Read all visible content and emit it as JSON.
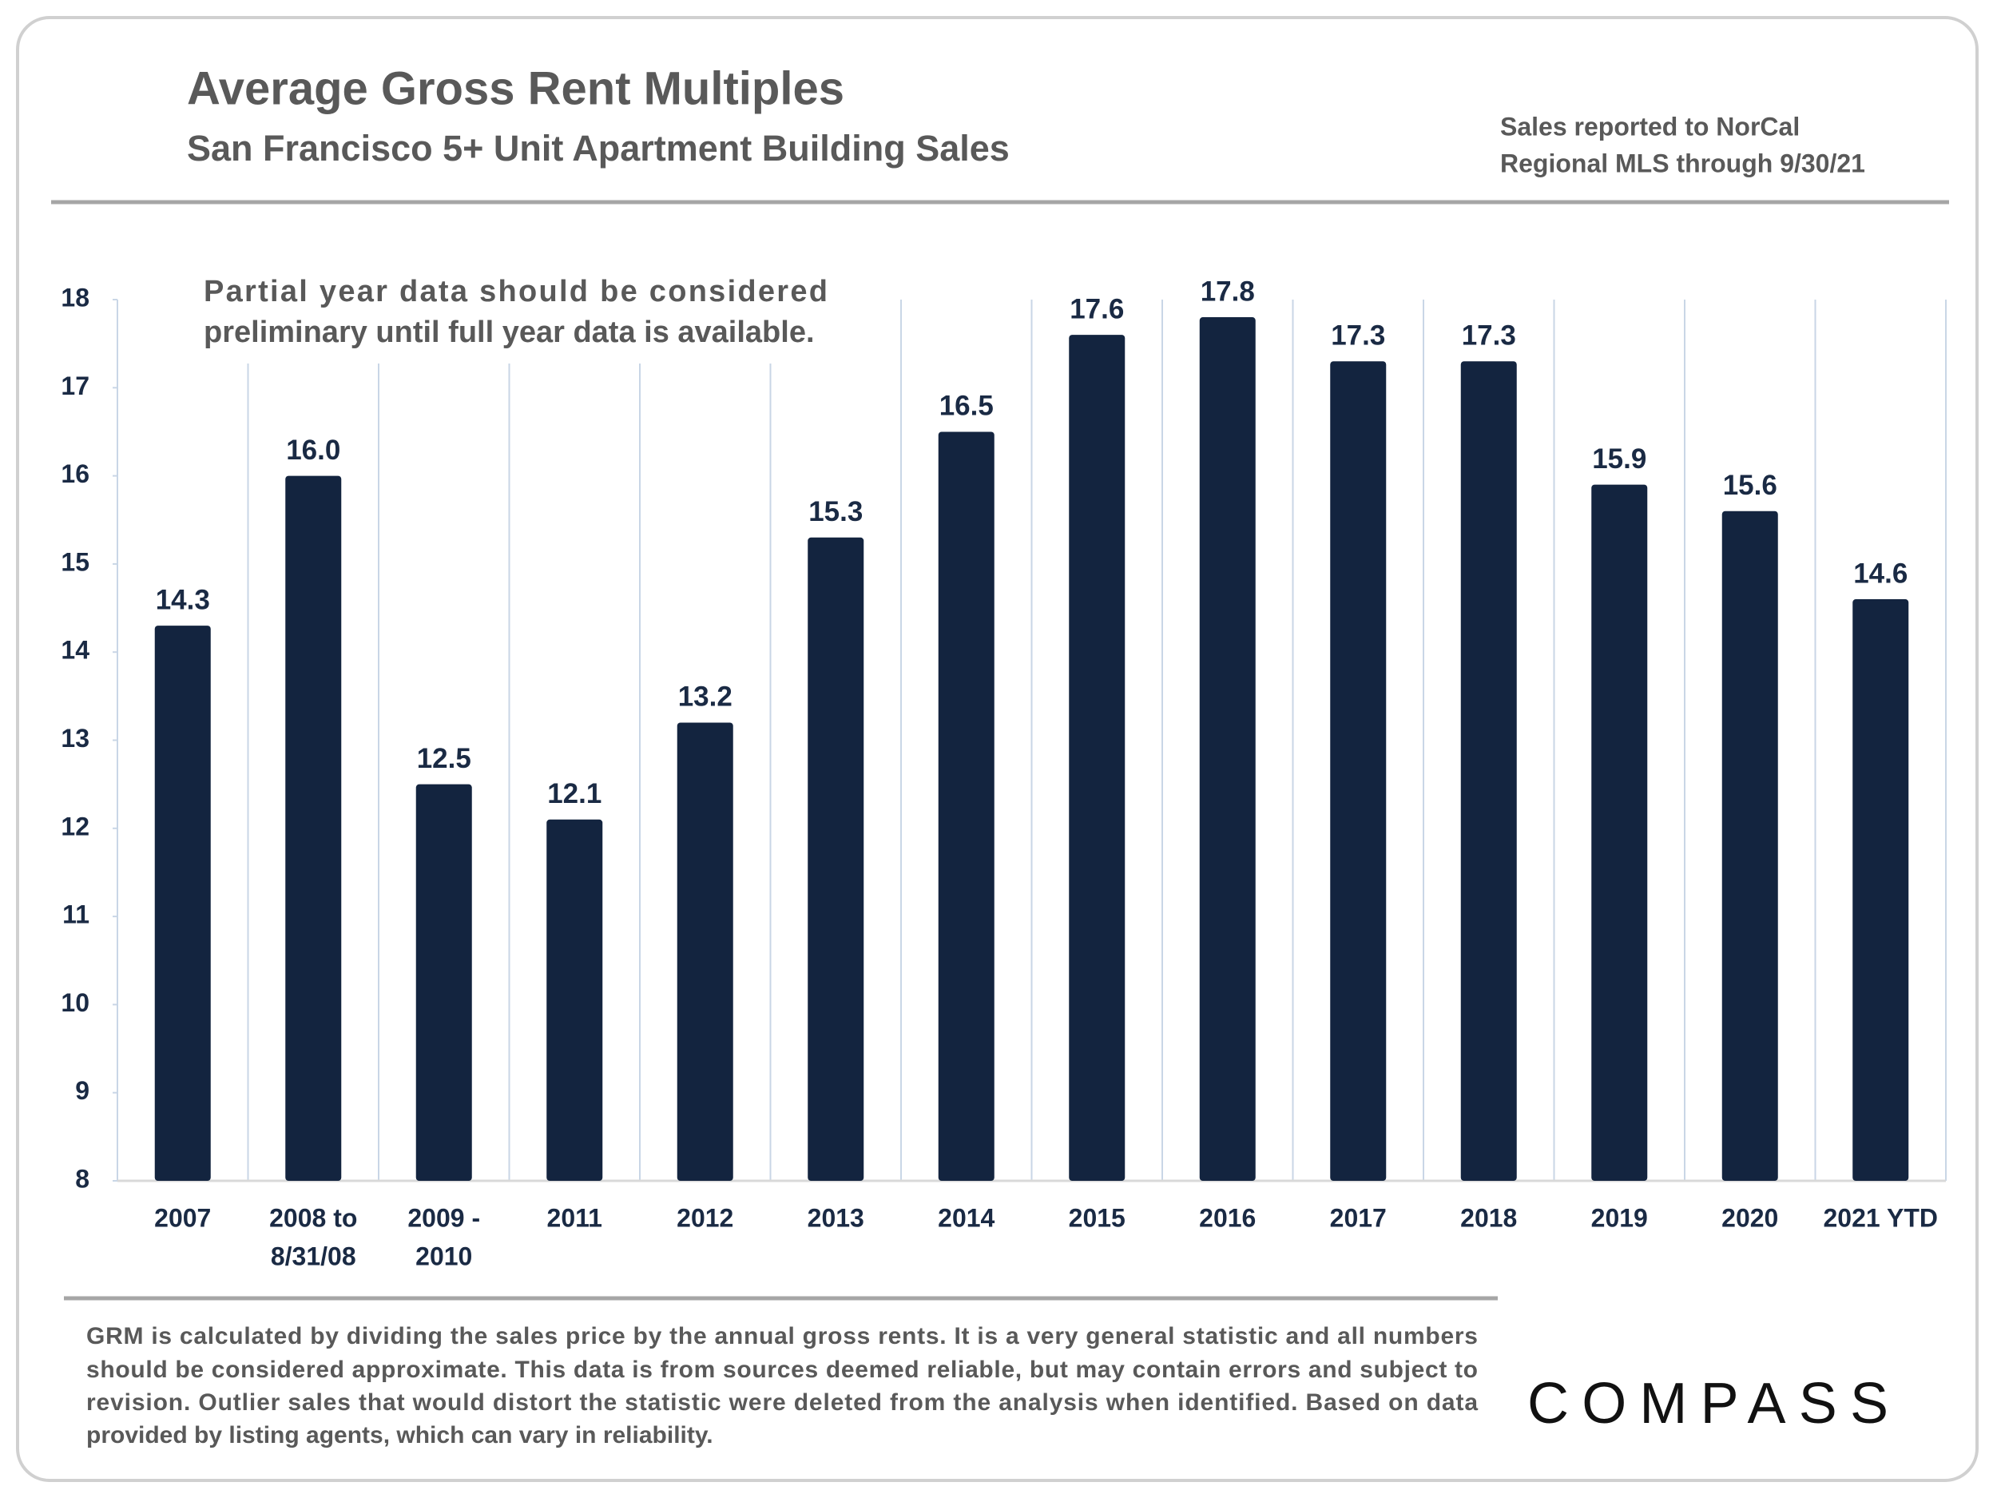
{
  "chart_data": {
    "type": "bar",
    "title": "Average Gross Rent Multiples",
    "subtitle": "San Francisco 5+ Unit Apartment Building Sales",
    "note": [
      "Sales reported to NorCal",
      "Regional MLS through 9/30/21"
    ],
    "annotation": [
      "Partial year data should be considered",
      "preliminary until full year data is available."
    ],
    "categories": [
      [
        "2007"
      ],
      [
        "2008 to",
        "8/31/08"
      ],
      [
        "2009 -",
        "2010"
      ],
      [
        "2011"
      ],
      [
        "2012"
      ],
      [
        "2013"
      ],
      [
        "2014"
      ],
      [
        "2015"
      ],
      [
        "2016"
      ],
      [
        "2017"
      ],
      [
        "2018"
      ],
      [
        "2019"
      ],
      [
        "2020"
      ],
      [
        "2021 YTD"
      ]
    ],
    "values": [
      14.3,
      16.0,
      12.5,
      12.1,
      13.2,
      15.3,
      16.5,
      17.6,
      17.8,
      17.3,
      17.3,
      15.9,
      15.6,
      14.6
    ],
    "value_labels": [
      "14.3",
      "16.0",
      "12.5",
      "12.1",
      "13.2",
      "15.3",
      "16.5",
      "17.6",
      "17.8",
      "17.3",
      "17.3",
      "15.9",
      "15.6",
      "14.6"
    ],
    "color": "#13243f",
    "ylim": [
      8,
      18
    ],
    "yticks": [
      8,
      9,
      10,
      11,
      12,
      13,
      14,
      15,
      16,
      17,
      18
    ],
    "footnote": [
      "GRM is calculated by dividing the sales price by the annual gross rents. It is a very general statistic and all numbers",
      "should be considered approximate. This data is from sources deemed reliable, but may contain errors and subject to",
      "revision. Outlier sales that would distort the statistic were deleted from the analysis when identified. Based on data",
      "provided by listing agents, which can vary in reliability."
    ],
    "logo": "COMPASS"
  }
}
